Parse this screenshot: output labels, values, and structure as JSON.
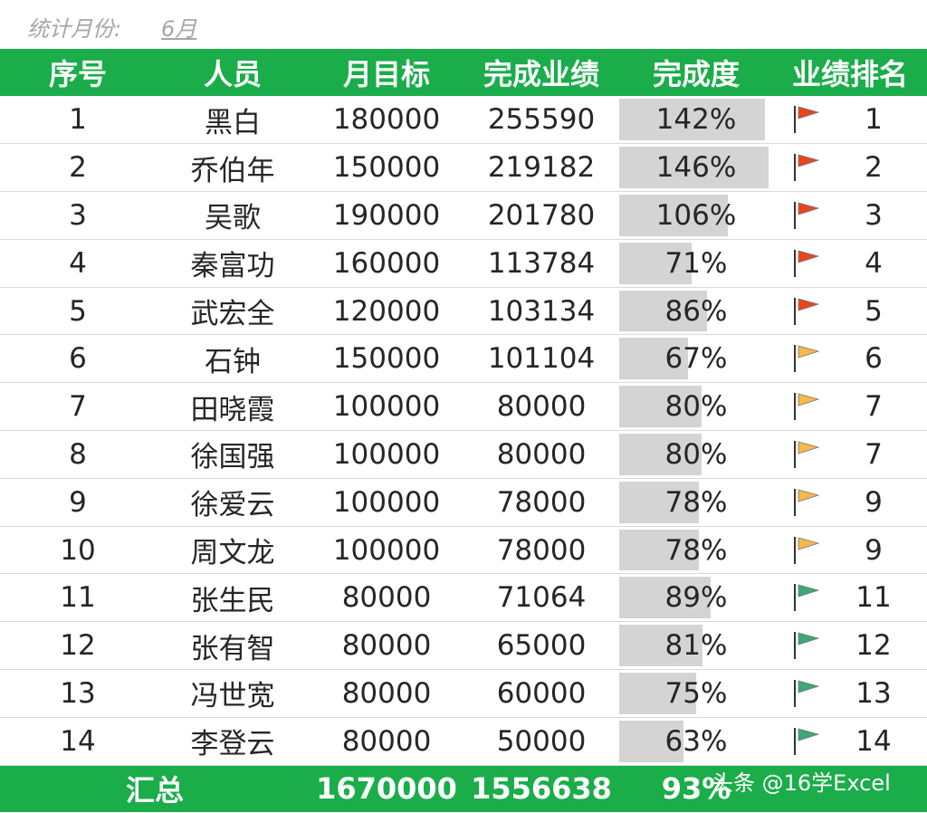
{
  "month": {
    "label": "统计月份:",
    "value": "6月"
  },
  "headers": [
    "序号",
    "人员",
    "月目标",
    "完成业绩",
    "完成度",
    "业绩排名"
  ],
  "rows": [
    {
      "no": "1",
      "name": "黑白",
      "target": "180000",
      "done": "255590",
      "pct": "142%",
      "rate": 1.42,
      "flag": "red",
      "rank": "1"
    },
    {
      "no": "2",
      "name": "乔伯年",
      "target": "150000",
      "done": "219182",
      "pct": "146%",
      "rate": 1.46,
      "flag": "red",
      "rank": "2"
    },
    {
      "no": "3",
      "name": "吴歌",
      "target": "190000",
      "done": "201780",
      "pct": "106%",
      "rate": 1.06,
      "flag": "red",
      "rank": "3"
    },
    {
      "no": "4",
      "name": "秦富功",
      "target": "160000",
      "done": "113784",
      "pct": "71%",
      "rate": 0.71,
      "flag": "red",
      "rank": "4"
    },
    {
      "no": "5",
      "name": "武宏全",
      "target": "120000",
      "done": "103134",
      "pct": "86%",
      "rate": 0.86,
      "flag": "red",
      "rank": "5"
    },
    {
      "no": "6",
      "name": "石钟",
      "target": "150000",
      "done": "101104",
      "pct": "67%",
      "rate": 0.67,
      "flag": "yellow",
      "rank": "6"
    },
    {
      "no": "7",
      "name": "田晓霞",
      "target": "100000",
      "done": "80000",
      "pct": "80%",
      "rate": 0.8,
      "flag": "yellow",
      "rank": "7"
    },
    {
      "no": "8",
      "name": "徐国强",
      "target": "100000",
      "done": "80000",
      "pct": "80%",
      "rate": 0.8,
      "flag": "yellow",
      "rank": "7"
    },
    {
      "no": "9",
      "name": "徐爱云",
      "target": "100000",
      "done": "78000",
      "pct": "78%",
      "rate": 0.78,
      "flag": "yellow",
      "rank": "9"
    },
    {
      "no": "10",
      "name": "周文龙",
      "target": "100000",
      "done": "78000",
      "pct": "78%",
      "rate": 0.78,
      "flag": "yellow",
      "rank": "9"
    },
    {
      "no": "11",
      "name": "张生民",
      "target": "80000",
      "done": "71064",
      "pct": "89%",
      "rate": 0.89,
      "flag": "green",
      "rank": "11"
    },
    {
      "no": "12",
      "name": "张有智",
      "target": "80000",
      "done": "65000",
      "pct": "81%",
      "rate": 0.81,
      "flag": "green",
      "rank": "12"
    },
    {
      "no": "13",
      "name": "冯世宽",
      "target": "80000",
      "done": "60000",
      "pct": "75%",
      "rate": 0.75,
      "flag": "green",
      "rank": "13"
    },
    {
      "no": "14",
      "name": "李登云",
      "target": "80000",
      "done": "50000",
      "pct": "63%",
      "rate": 0.63,
      "flag": "green",
      "rank": "14"
    }
  ],
  "total": {
    "label": "汇总",
    "target": "1670000",
    "done": "1556638",
    "pct": "93%"
  },
  "flag_colors": {
    "red": "#e8451e",
    "yellow": "#f5b84a",
    "green": "#3fa67a"
  },
  "colors": {
    "header_bg": "#1aad4a",
    "bar": "#d4d4d4"
  },
  "bar_max_rate": 1.5,
  "watermark": "头条 @16学Excel"
}
